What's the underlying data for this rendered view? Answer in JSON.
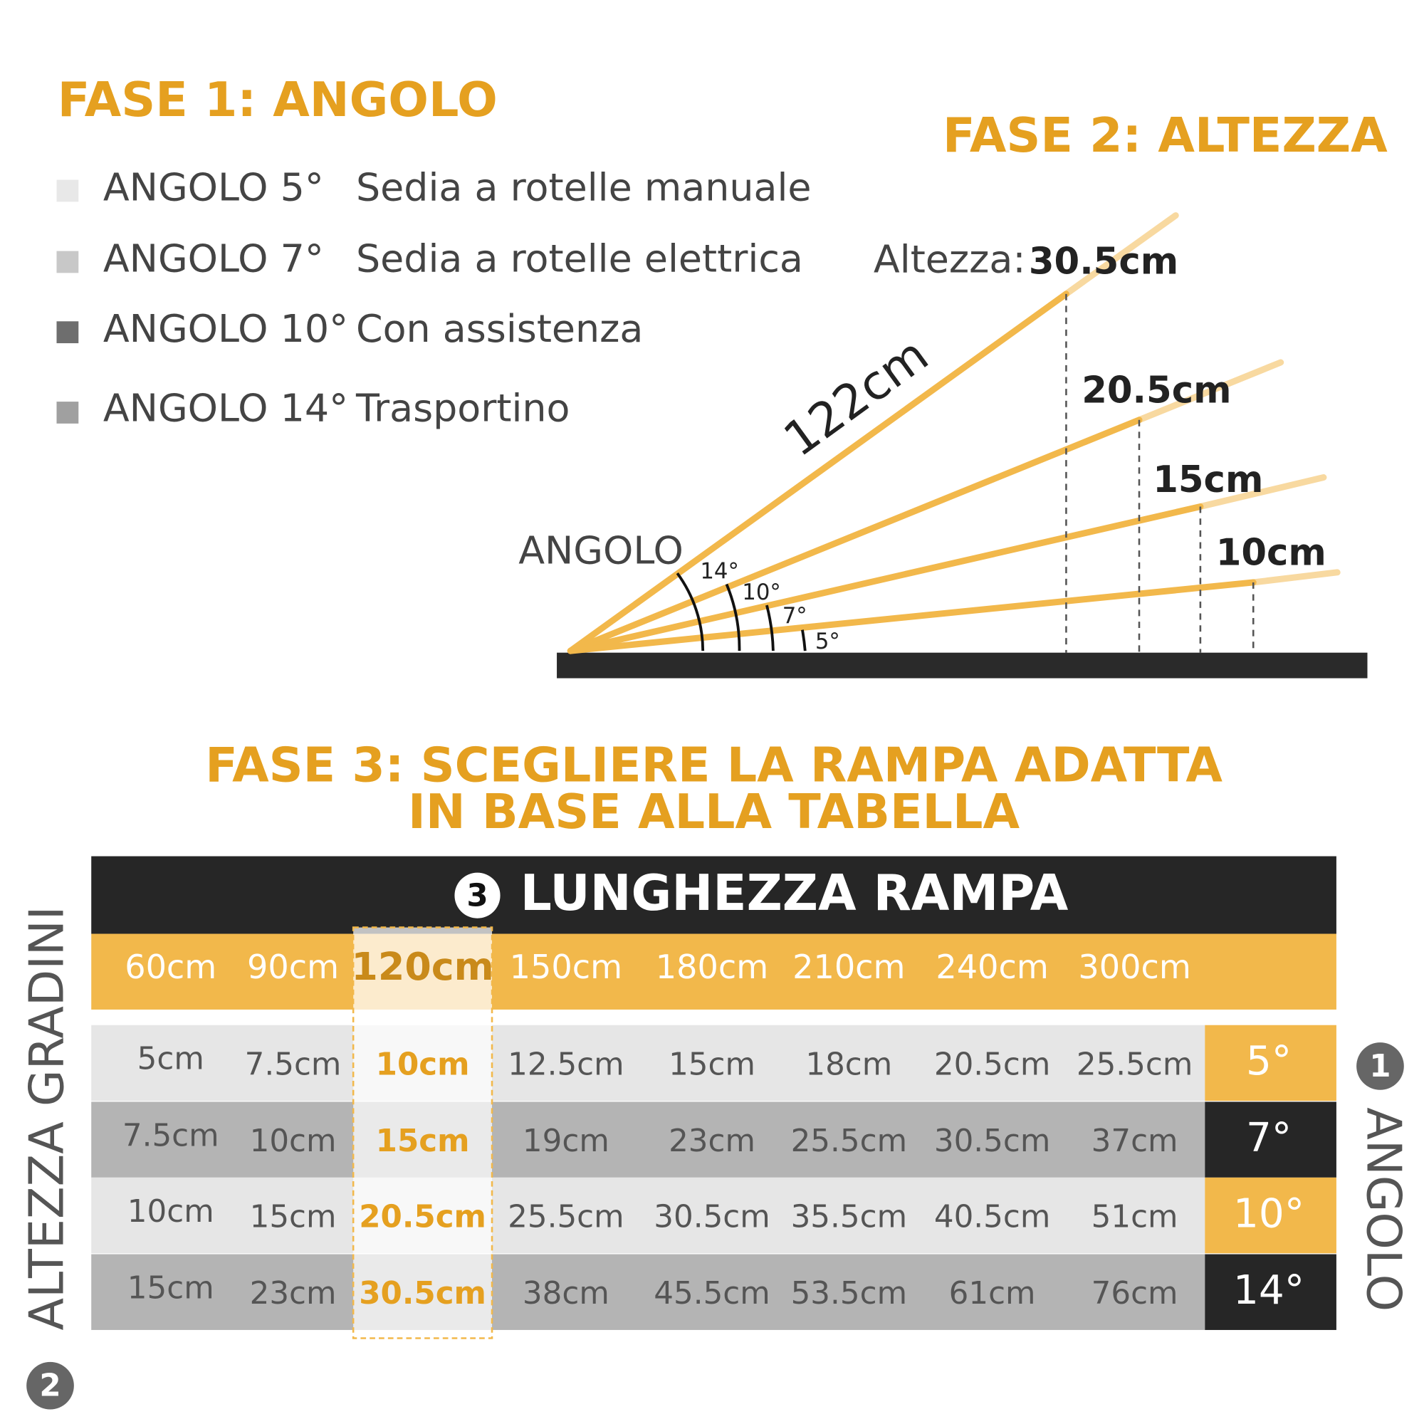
{
  "fase1": {
    "title": "FASE 1: ANGOLO",
    "items": [
      {
        "angle": "ANGOLO 5°",
        "use": "Sedia a rotelle manuale"
      },
      {
        "angle": "ANGOLO 7°",
        "use": "Sedia a rotelle elettrica"
      },
      {
        "angle": "ANGOLO 10°",
        "use": "Con assistenza"
      },
      {
        "angle": "ANGOLO 14°",
        "use": "Trasportino"
      }
    ]
  },
  "fase2": {
    "title": "FASE 2: ALTEZZA",
    "height_label": "Altezza:",
    "heights": [
      "30.5cm",
      "20.5cm",
      "15cm",
      "10cm"
    ],
    "length": "122cm",
    "angle_label": "ANGOLO",
    "angles": [
      "14°",
      "10°",
      "7°",
      "5°"
    ]
  },
  "fase3": {
    "title_lines": [
      "FASE 3: SCEGLIERE LA RAMPA ADATTA",
      "IN BASE ALLA TABELLA"
    ],
    "header_badge": "3",
    "header": "LUNGHEZZA RAMPA",
    "columns": [
      "60cm",
      "90cm",
      "120cm",
      "150cm",
      "180cm",
      "210cm",
      "240cm",
      "300cm"
    ],
    "rows": [
      {
        "cells": [
          "5cm",
          "7.5cm",
          "10cm",
          "12.5cm",
          "15cm",
          "18cm",
          "20.5cm",
          "25.5cm"
        ],
        "angle": "5°"
      },
      {
        "cells": [
          "7.5cm",
          "10cm",
          "15cm",
          "19cm",
          "23cm",
          "25.5cm",
          "30.5cm",
          "37cm"
        ],
        "angle": "7°"
      },
      {
        "cells": [
          "10cm",
          "15cm",
          "20.5cm",
          "25.5cm",
          "30.5cm",
          "35.5cm",
          "40.5cm",
          "51cm"
        ],
        "angle": "10°"
      },
      {
        "cells": [
          "15cm",
          "23cm",
          "30.5cm",
          "38cm",
          "45.5cm",
          "53.5cm",
          "61cm",
          "76cm"
        ],
        "angle": "14°"
      }
    ],
    "left_label": "ALTEZZA GRADINI",
    "left_badge": "2",
    "right_label": "ANGOLO",
    "right_badge": "1"
  }
}
